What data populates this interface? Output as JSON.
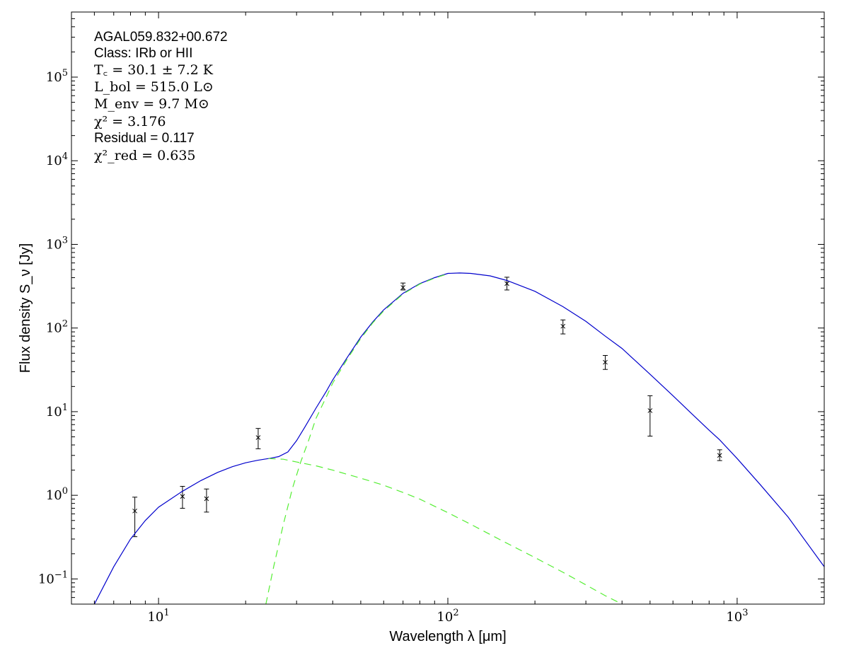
{
  "chart_data": {
    "type": "scatter",
    "xscale": "log",
    "yscale": "log",
    "xlim": [
      5,
      2000
    ],
    "ylim": [
      0.05,
      600000
    ],
    "xlabel": "Wavelength λ [μm]",
    "ylabel": "Flux density S_ν [Jy]",
    "grid": false,
    "x_ticks": [
      {
        "value": 10,
        "base": "10",
        "exp": "1"
      },
      {
        "value": 100,
        "base": "10",
        "exp": "2"
      },
      {
        "value": 1000,
        "base": "10",
        "exp": "3"
      }
    ],
    "y_ticks": [
      {
        "value": 0.1,
        "base": "10",
        "exp": "−1"
      },
      {
        "value": 1,
        "base": "10",
        "exp": "0"
      },
      {
        "value": 10,
        "base": "10",
        "exp": "1"
      },
      {
        "value": 100,
        "base": "10",
        "exp": "2"
      },
      {
        "value": 1000,
        "base": "10",
        "exp": "3"
      },
      {
        "value": 10000,
        "base": "10",
        "exp": "4"
      },
      {
        "value": 100000,
        "base": "10",
        "exp": "5"
      }
    ],
    "annotations": [
      {
        "id": "source",
        "text": "AGAL059.832+00.672",
        "style": "sans"
      },
      {
        "id": "class",
        "text": "Class: IRb or HII",
        "style": "sans"
      },
      {
        "id": "tc",
        "text": "T꜀ = 30.1 ± 7.2 K",
        "style": "serif"
      },
      {
        "id": "lbol",
        "text": "L_bol = 515.0 L⊙",
        "style": "serif"
      },
      {
        "id": "menv",
        "text": "M_env = 9.7 M⊙",
        "style": "serif"
      },
      {
        "id": "chi2",
        "text": "χ² = 3.176",
        "style": "serif"
      },
      {
        "id": "residual",
        "text": "Residual = 0.117",
        "style": "sans"
      },
      {
        "id": "chi2red",
        "text": "χ²_red = 0.635",
        "style": "serif"
      }
    ],
    "series": [
      {
        "kind": "points",
        "color": "#000000",
        "marker": "x",
        "points": [
          {
            "x": 8.28,
            "y": 0.65,
            "ylo": 0.32,
            "yhi": 0.95
          },
          {
            "x": 12.1,
            "y": 0.97,
            "ylo": 0.7,
            "yhi": 1.28
          },
          {
            "x": 14.65,
            "y": 0.91,
            "ylo": 0.63,
            "yhi": 1.19
          },
          {
            "x": 22.1,
            "y": 4.9,
            "ylo": 3.6,
            "yhi": 6.3
          },
          {
            "x": 70,
            "y": 305,
            "ylo": 285,
            "yhi": 345
          },
          {
            "x": 160,
            "y": 340,
            "ylo": 285,
            "yhi": 405
          },
          {
            "x": 250,
            "y": 105,
            "ylo": 85,
            "yhi": 125
          },
          {
            "x": 350,
            "y": 39,
            "ylo": 32,
            "yhi": 47
          },
          {
            "x": 500,
            "y": 10.3,
            "ylo": 5.1,
            "yhi": 15.5
          },
          {
            "x": 870,
            "y": 3.0,
            "ylo": 2.6,
            "yhi": 3.5
          }
        ]
      },
      {
        "kind": "line",
        "color": "#0000cc",
        "dash": "solid",
        "points": [
          [
            6,
            0.05
          ],
          [
            7,
            0.14
          ],
          [
            8,
            0.3
          ],
          [
            9,
            0.5
          ],
          [
            10,
            0.72
          ],
          [
            12,
            1.1
          ],
          [
            14,
            1.5
          ],
          [
            16,
            1.88
          ],
          [
            18,
            2.2
          ],
          [
            20,
            2.45
          ],
          [
            22,
            2.62
          ],
          [
            24,
            2.75
          ],
          [
            26,
            2.9
          ],
          [
            28,
            3.3
          ],
          [
            30,
            4.5
          ],
          [
            32,
            6.5
          ],
          [
            35,
            11
          ],
          [
            38,
            17.5
          ],
          [
            40,
            24
          ],
          [
            45,
            45
          ],
          [
            50,
            78
          ],
          [
            55,
            118
          ],
          [
            60,
            165
          ],
          [
            70,
            260
          ],
          [
            80,
            340
          ],
          [
            90,
            400
          ],
          [
            100,
            450
          ],
          [
            110,
            455
          ],
          [
            120,
            450
          ],
          [
            140,
            420
          ],
          [
            160,
            370
          ],
          [
            200,
            275
          ],
          [
            250,
            180
          ],
          [
            300,
            120
          ],
          [
            350,
            80
          ],
          [
            400,
            57
          ],
          [
            500,
            28
          ],
          [
            600,
            15.5
          ],
          [
            700,
            9.3
          ],
          [
            800,
            6.0
          ],
          [
            870,
            4.6
          ],
          [
            1000,
            2.75
          ],
          [
            1200,
            1.35
          ],
          [
            1500,
            0.55
          ],
          [
            2000,
            0.14
          ]
        ]
      },
      {
        "kind": "line",
        "color": "#55ee33",
        "dash": "dashed",
        "points": [
          [
            24,
            2.75
          ],
          [
            27,
            2.7
          ],
          [
            30,
            2.5
          ],
          [
            35,
            2.25
          ],
          [
            40,
            2.0
          ],
          [
            50,
            1.6
          ],
          [
            60,
            1.32
          ],
          [
            70,
            1.08
          ],
          [
            80,
            0.9
          ],
          [
            100,
            0.62
          ],
          [
            120,
            0.45
          ],
          [
            150,
            0.3
          ],
          [
            200,
            0.18
          ],
          [
            250,
            0.12
          ],
          [
            300,
            0.085
          ],
          [
            350,
            0.063
          ],
          [
            400,
            0.05
          ]
        ]
      },
      {
        "kind": "line",
        "color": "#55ee33",
        "dash": "dashed",
        "points": [
          [
            23.5,
            0.05
          ],
          [
            25,
            0.14
          ],
          [
            27,
            0.45
          ],
          [
            29,
            1.2
          ],
          [
            31,
            2.5
          ],
          [
            33,
            4.5
          ],
          [
            35,
            8.3
          ],
          [
            38,
            15
          ],
          [
            40,
            22
          ],
          [
            45,
            43
          ],
          [
            50,
            75
          ],
          [
            55,
            115
          ],
          [
            60,
            160
          ],
          [
            70,
            255
          ],
          [
            80,
            335
          ],
          [
            90,
            395
          ],
          [
            100,
            445
          ]
        ]
      }
    ]
  }
}
